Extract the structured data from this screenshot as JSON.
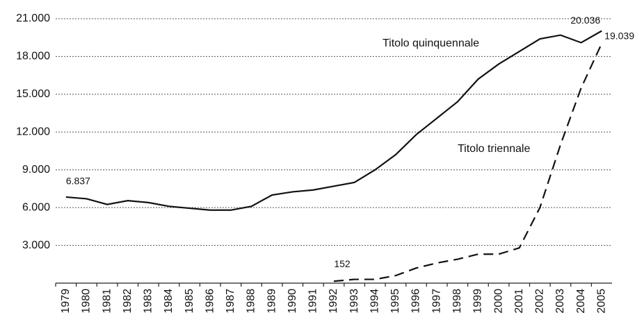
{
  "chart_data": {
    "type": "line",
    "categories": [
      "1979",
      "1980",
      "1981",
      "1982",
      "1983",
      "1984",
      "1985",
      "1986",
      "1987",
      "1988",
      "1989",
      "1990",
      "1991",
      "1992",
      "1993",
      "1994",
      "1995",
      "1996",
      "1997",
      "1998",
      "1999",
      "2000",
      "2001",
      "2002",
      "2003",
      "2004",
      "2005"
    ],
    "series": [
      {
        "name": "Titolo quinquennale",
        "color": "#111111",
        "dash": false,
        "values": [
          6837,
          6700,
          6250,
          6550,
          6400,
          6100,
          5950,
          5800,
          5800,
          6100,
          7000,
          7250,
          7400,
          7700,
          8000,
          9000,
          10200,
          11800,
          13100,
          14400,
          16200,
          17400,
          18400,
          19400,
          19700,
          19100,
          20036
        ],
        "value_labels": [
          "6.837",
          null,
          null,
          null,
          null,
          null,
          null,
          null,
          null,
          null,
          null,
          null,
          null,
          null,
          null,
          null,
          null,
          null,
          null,
          null,
          null,
          null,
          null,
          null,
          null,
          null,
          "20.036"
        ]
      },
      {
        "name": "Titolo triennale",
        "color": "#111111",
        "dash": true,
        "values": [
          null,
          null,
          null,
          null,
          null,
          null,
          null,
          null,
          null,
          null,
          null,
          null,
          null,
          152,
          300,
          300,
          600,
          1200,
          1600,
          1900,
          2300,
          2300,
          2800,
          6000,
          11000,
          15500,
          19039
        ],
        "value_labels": [
          null,
          null,
          null,
          null,
          null,
          null,
          null,
          null,
          null,
          null,
          null,
          null,
          null,
          "152",
          null,
          null,
          null,
          null,
          null,
          null,
          null,
          null,
          null,
          null,
          null,
          null,
          "19.039"
        ]
      }
    ],
    "ylim": [
      0,
      21000
    ],
    "yticks": [
      {
        "value": 3000,
        "label": "3.000"
      },
      {
        "value": 6000,
        "label": "6.000"
      },
      {
        "value": 9000,
        "label": "9.000"
      },
      {
        "value": 12000,
        "label": "12.000"
      },
      {
        "value": 15000,
        "label": "15.000"
      },
      {
        "value": 18000,
        "label": "18.000"
      },
      {
        "value": 21000,
        "label": "21.000"
      }
    ],
    "grid": true
  }
}
